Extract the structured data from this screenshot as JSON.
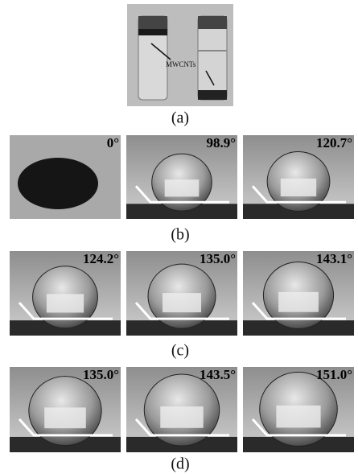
{
  "panels": {
    "a": {
      "label": "(a)",
      "annotation": "MWCNTs"
    },
    "b": {
      "label": "(b)",
      "angles": [
        "0°",
        "98.9°",
        "120.7°"
      ]
    },
    "c": {
      "label": "(c)",
      "angles": [
        "124.2°",
        "135.0°",
        "143.1°"
      ]
    },
    "d": {
      "label": "(d)",
      "angles": [
        "135.0°",
        "143.5°",
        "151.0°"
      ]
    }
  }
}
